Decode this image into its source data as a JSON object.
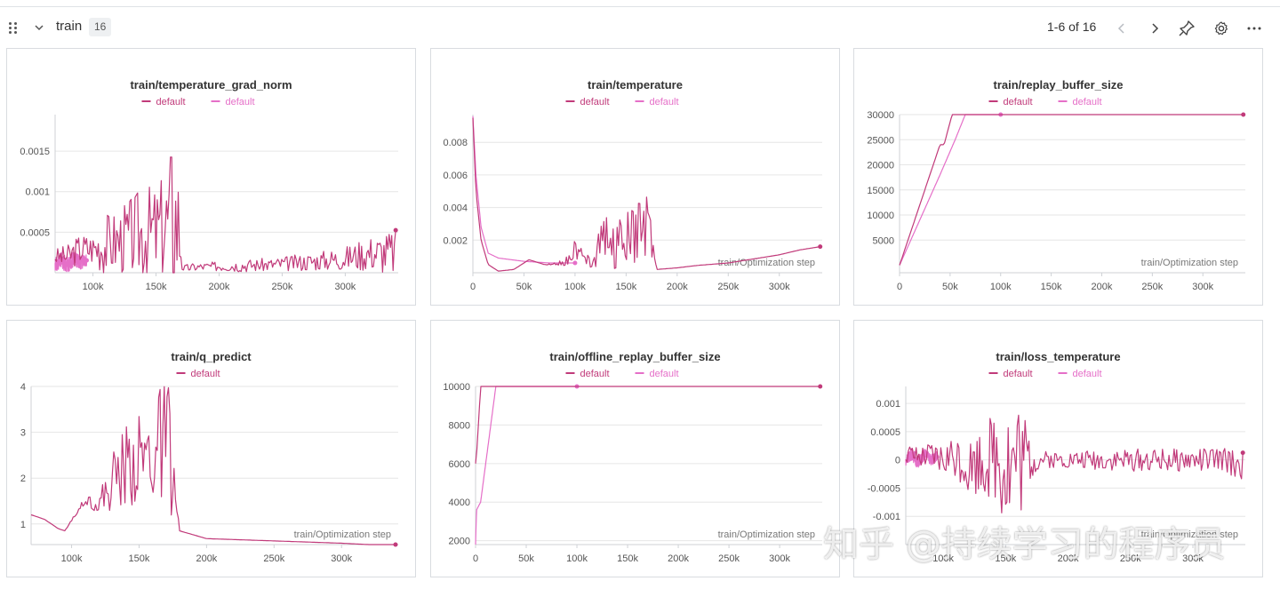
{
  "section": {
    "title": "train",
    "count": "16",
    "pagination": "1-6 of 16"
  },
  "icons": {
    "drag": "drag-handle-icon",
    "collapse": "chevron-down-icon",
    "prev": "chevron-left-icon",
    "next": "chevron-right-icon",
    "pin": "pin-icon",
    "settings": "gear-icon",
    "more": "more-horizontal-icon"
  },
  "colors": {
    "series_dark": "#c13a7a",
    "series_light": "#e56fc8",
    "grid": "#e6e6e6",
    "axis_text": "#555555"
  },
  "watermark": "知乎 @持续学习的程序员",
  "chart_data": [
    {
      "type": "line",
      "title": "train/temperature_grad_norm",
      "xlabel": "",
      "xlim": [
        70000,
        342000
      ],
      "ylim": [
        0,
        0.00195
      ],
      "xticks": [
        100000,
        150000,
        200000,
        250000,
        300000
      ],
      "xtick_labels": [
        "100k",
        "150k",
        "200k",
        "250k",
        "300k"
      ],
      "yticks": [
        0.0005,
        0.001,
        0.0015
      ],
      "ytick_labels": [
        "0.0005",
        "0.001",
        "0.0015"
      ],
      "series": [
        {
          "name": "default",
          "color": "#c13a7a",
          "x": [
            70000,
            80000,
            90000,
            100000,
            110000,
            120000,
            130000,
            140000,
            150000,
            160000,
            163000,
            168000,
            172000,
            180000,
            200000,
            220000,
            240000,
            260000,
            280000,
            300000,
            320000,
            340000
          ],
          "y": [
            0.0002,
            0.0002,
            0.0003,
            0.0003,
            0.00035,
            0.0004,
            0.00045,
            0.0005,
            0.0005,
            0.00065,
            0.00075,
            0.0006,
            5e-05,
            7e-05,
            8e-05,
            9e-05,
            0.0001,
            0.00012,
            0.00015,
            0.00018,
            0.00025,
            0.00025
          ],
          "spread": [
            0.0001,
            0.00015,
            0.0002,
            0.0002,
            0.0004,
            0.0004,
            0.0005,
            0.0006,
            0.0006,
            0.0007,
            0.00115,
            0.0008,
            5e-05,
            5e-05,
            6e-05,
            8e-05,
            8e-05,
            0.0001,
            0.00012,
            0.00015,
            0.00022,
            0.0003
          ]
        },
        {
          "name": "default",
          "color": "#e56fc8",
          "x": [
            70000,
            75000,
            80000,
            85000,
            90000,
            95000
          ],
          "y": [
            0.0001,
            0.00015,
            0.0001,
            0.00018,
            0.00012,
            0.00015
          ],
          "spread": [
            8e-05,
            0.0001,
            0.0001,
            0.0001,
            8e-05,
            8e-05
          ]
        }
      ]
    },
    {
      "type": "line",
      "title": "train/temperature",
      "xlabel": "train/Optimization step",
      "xlim": [
        0,
        342000
      ],
      "ylim": [
        0,
        0.0097
      ],
      "xticks": [
        0,
        50000,
        100000,
        150000,
        200000,
        250000,
        300000
      ],
      "xtick_labels": [
        "0",
        "50k",
        "100k",
        "150k",
        "200k",
        "250k",
        "300k"
      ],
      "yticks": [
        0.002,
        0.004,
        0.006,
        0.008
      ],
      "ytick_labels": [
        "0.002",
        "0.004",
        "0.006",
        "0.008"
      ],
      "series": [
        {
          "name": "default",
          "color": "#c13a7a",
          "x": [
            0,
            3000,
            8000,
            15000,
            25000,
            40000,
            55000,
            70000,
            90000,
            100000,
            105000,
            110000,
            120000,
            125000,
            130000,
            135000,
            145000,
            155000,
            165000,
            172000,
            180000,
            200000,
            220000,
            250000,
            270000,
            300000,
            320000,
            340000
          ],
          "y": [
            0.0095,
            0.005,
            0.002,
            0.0005,
            0.0001,
            0.0002,
            0.0008,
            0.0005,
            0.0006,
            0.0014,
            0.0012,
            0.0007,
            0.0012,
            0.0023,
            0.0021,
            0.0016,
            0.0019,
            0.0022,
            0.0028,
            0.0032,
            0.0002,
            0.0003,
            0.00045,
            0.0006,
            0.0008,
            0.0011,
            0.0014,
            0.0016
          ],
          "spread": [
            0,
            0,
            0,
            0,
            0,
            0,
            0,
            0,
            0.0002,
            0.0006,
            0.0006,
            0.0003,
            0.001,
            0.0015,
            0.0016,
            0.0015,
            0.0016,
            0.0017,
            0.0019,
            0.002,
            0,
            0,
            0,
            0,
            0,
            0,
            0,
            0
          ]
        },
        {
          "name": "default",
          "color": "#e56fc8",
          "x": [
            0,
            3000,
            8000,
            15000,
            25000,
            50000,
            75000,
            100000
          ],
          "y": [
            0.0096,
            0.006,
            0.0028,
            0.0012,
            0.0009,
            0.0007,
            0.0006,
            0.0006
          ],
          "spread": [
            0,
            0,
            0,
            0,
            0,
            0,
            0,
            0
          ]
        }
      ]
    },
    {
      "type": "line",
      "title": "train/replay_buffer_size",
      "xlabel": "train/Optimization step",
      "xlim": [
        0,
        342000
      ],
      "ylim": [
        -1500,
        30000
      ],
      "xticks": [
        0,
        50000,
        100000,
        150000,
        200000,
        250000,
        300000
      ],
      "xtick_labels": [
        "0",
        "50k",
        "100k",
        "150k",
        "200k",
        "250k",
        "300k"
      ],
      "yticks": [
        5000,
        10000,
        15000,
        20000,
        25000,
        30000
      ],
      "ytick_labels": [
        "5000",
        "10000",
        "15000",
        "20000",
        "25000",
        "30000"
      ],
      "series": [
        {
          "name": "default",
          "color": "#c13a7a",
          "x": [
            0,
            10000,
            20000,
            30000,
            40000,
            44000,
            48000,
            52000,
            60000,
            100000,
            200000,
            340000
          ],
          "y": [
            0,
            6000,
            12000,
            18000,
            24000,
            24000,
            27000,
            30000,
            30000,
            30000,
            30000,
            30000
          ],
          "spread": [
            0,
            0,
            0,
            0,
            0,
            0,
            0,
            0,
            0,
            0,
            0,
            0
          ]
        },
        {
          "name": "default",
          "color": "#e56fc8",
          "x": [
            0,
            20000,
            40000,
            55000,
            65000,
            100000
          ],
          "y": [
            0,
            9000,
            18000,
            25000,
            30000,
            30000
          ],
          "spread": [
            0,
            0,
            0,
            0,
            0,
            0
          ]
        }
      ]
    },
    {
      "type": "line",
      "title": "train/q_predict",
      "xlabel": "train/Optimization step",
      "xlim": [
        70000,
        342000
      ],
      "ylim": [
        0.55,
        4
      ],
      "xticks": [
        100000,
        150000,
        200000,
        250000,
        300000
      ],
      "xtick_labels": [
        "100k",
        "150k",
        "200k",
        "250k",
        "300k"
      ],
      "yticks": [
        1,
        2,
        3,
        4
      ],
      "ytick_labels": [
        "1",
        "2",
        "3",
        "4"
      ],
      "series": [
        {
          "name": "default",
          "color": "#c13a7a",
          "x": [
            70000,
            80000,
            90000,
            95000,
            105000,
            110000,
            120000,
            130000,
            140000,
            150000,
            160000,
            165000,
            172000,
            180000,
            200000,
            250000,
            300000,
            340000
          ],
          "y": [
            1.2,
            1.1,
            0.9,
            0.85,
            1.3,
            1.55,
            1.4,
            1.9,
            2.25,
            2.35,
            2.5,
            2.6,
            2.7,
            0.85,
            0.68,
            0.63,
            0.58,
            0.52
          ],
          "spread": [
            0,
            0,
            0,
            0,
            0.05,
            0.1,
            0.2,
            0.7,
            0.9,
            1.0,
            1.25,
            1.35,
            1.45,
            0,
            0,
            0,
            0,
            0
          ]
        }
      ]
    },
    {
      "type": "line",
      "title": "train/offline_replay_buffer_size",
      "xlabel": "train/Optimization step",
      "xlim": [
        0,
        342000
      ],
      "ylim": [
        1800,
        10000
      ],
      "xticks": [
        0,
        50000,
        100000,
        150000,
        200000,
        250000,
        300000
      ],
      "xtick_labels": [
        "0",
        "50k",
        "100k",
        "150k",
        "200k",
        "250k",
        "300k"
      ],
      "yticks": [
        2000,
        4000,
        6000,
        8000,
        10000
      ],
      "ytick_labels": [
        "2000",
        "4000",
        "6000",
        "8000",
        "10000"
      ],
      "series": [
        {
          "name": "default",
          "color": "#c13a7a",
          "x": [
            0,
            500,
            5000,
            10000,
            100000,
            340000
          ],
          "y": [
            6000,
            6000,
            10000,
            10000,
            10000,
            10000
          ],
          "spread": [
            0,
            0,
            0,
            0,
            0,
            0
          ]
        },
        {
          "name": "default",
          "color": "#e56fc8",
          "x": [
            0,
            1000,
            5000,
            10000,
            20000,
            100000
          ],
          "y": [
            1800,
            3600,
            4000,
            6000,
            10000,
            10000
          ],
          "spread": [
            0,
            0,
            0,
            0,
            0,
            0
          ]
        }
      ]
    },
    {
      "type": "line",
      "title": "train/loss_temperature",
      "xlabel": "train/Optimization step",
      "xlim": [
        70000,
        342000
      ],
      "ylim": [
        -0.0015,
        0.0013
      ],
      "xticks": [
        100000,
        150000,
        200000,
        250000,
        300000
      ],
      "xtick_labels": [
        "100k",
        "150k",
        "200k",
        "250k",
        "300k"
      ],
      "yticks": [
        -0.001,
        -0.0005,
        0,
        0.0005,
        0.001
      ],
      "ytick_labels": [
        "-0.001",
        "-0.0005",
        "0",
        "0.0005",
        "0.001"
      ],
      "series": [
        {
          "name": "default",
          "color": "#c13a7a",
          "x": [
            70000,
            80000,
            90000,
            100000,
            110000,
            120000,
            130000,
            140000,
            145000,
            150000,
            155000,
            160000,
            165000,
            172000,
            180000,
            200000,
            220000,
            250000,
            280000,
            300000,
            320000,
            340000
          ],
          "y": [
            0.0001,
            0.0,
            5e-05,
            0.0,
            0.0001,
            -0.0001,
            0.0,
            0.0001,
            0.0001,
            0.0,
            -0.0001,
            0.0001,
            0.0,
            0.0,
            0.0,
            0.0,
            0.0,
            0.0,
            0.0,
            0.0,
            0.0,
            -0.0001
          ],
          "spread": [
            0.0002,
            0.0002,
            0.00025,
            0.0003,
            0.0004,
            0.0005,
            0.0006,
            0.0008,
            0.001,
            0.0012,
            0.0013,
            0.0011,
            0.0009,
            0.0003,
            0.00015,
            0.00015,
            0.00018,
            0.0002,
            0.0002,
            0.0002,
            0.00022,
            0.00025
          ]
        },
        {
          "name": "default",
          "color": "#e56fc8",
          "x": [
            70000,
            75000,
            80000,
            85000,
            90000,
            95000
          ],
          "y": [
            0.0,
            0.0001,
            -5e-05,
            0.0001,
            0.0,
            5e-05
          ],
          "spread": [
            0.0001,
            0.00012,
            0.00012,
            0.0001,
            0.0001,
            0.0001
          ]
        }
      ]
    }
  ]
}
